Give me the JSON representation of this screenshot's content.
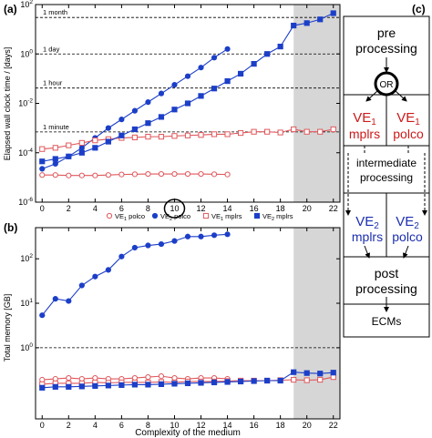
{
  "chart_data": [
    {
      "panel_label": "(a)",
      "type": "line",
      "ylabel": "Elapsed wall clock time / [days]",
      "y_scale": "log",
      "ylim_exp": [
        -6,
        2
      ],
      "y_ticks": [
        {
          "base": "10",
          "exp": "-6"
        },
        {
          "base": "10",
          "exp": "-4"
        },
        {
          "base": "10",
          "exp": "-2"
        },
        {
          "base": "10",
          "exp": "0"
        },
        {
          "base": "10",
          "exp": "2"
        }
      ],
      "xlim": [
        -0.5,
        22.5
      ],
      "x_ticks": [
        "0",
        "2",
        "4",
        "6",
        "8",
        "10",
        "12",
        "14",
        "16",
        "18",
        "20",
        "22"
      ],
      "highlighted_tick": "10",
      "shaded_x_range": [
        19,
        22.5
      ],
      "reference_lines": [
        {
          "label": "1 month",
          "log10_value": 1.477
        },
        {
          "label": "1 day",
          "log10_value": 0
        },
        {
          "label": "1 hour",
          "log10_value": -1.38
        },
        {
          "label": "1 minute",
          "log10_value": -3.158
        }
      ],
      "series_log10": [
        {
          "name_base": "VE",
          "name_sub": "1",
          "name_rest": " polco",
          "color": "#e0585c",
          "marker": "circle-open",
          "x": [
            0,
            1,
            2,
            3,
            4,
            5,
            6,
            7,
            8,
            9,
            10,
            11,
            12,
            13,
            14
          ],
          "log10_y": [
            -4.9,
            -4.9,
            -4.92,
            -4.92,
            -4.92,
            -4.9,
            -4.88,
            -4.87,
            -4.86,
            -4.86,
            -4.86,
            -4.86,
            -4.86,
            -4.87,
            -4.88
          ]
        },
        {
          "name_base": "VE",
          "name_sub": "2",
          "name_rest": " polco",
          "color": "#1c3fc8",
          "marker": "circle-filled",
          "x": [
            0,
            1,
            2,
            3,
            4,
            5,
            6,
            7,
            8,
            9,
            10,
            11,
            12,
            13,
            14
          ],
          "log10_y": [
            -4.65,
            -4.45,
            -4.15,
            -3.8,
            -3.4,
            -3.0,
            -2.65,
            -2.3,
            -1.95,
            -1.6,
            -1.25,
            -0.9,
            -0.55,
            -0.15,
            0.2
          ]
        },
        {
          "name_base": "VE",
          "name_sub": "1",
          "name_rest": " mplrs",
          "color": "#e0585c",
          "marker": "square-open",
          "x": [
            0,
            1,
            2,
            3,
            4,
            5,
            6,
            7,
            8,
            9,
            10,
            11,
            12,
            13,
            14,
            15,
            16,
            17,
            18,
            19,
            20,
            21,
            22
          ],
          "log10_y": [
            -3.85,
            -3.8,
            -3.7,
            -3.6,
            -3.5,
            -3.45,
            -3.4,
            -3.38,
            -3.35,
            -3.35,
            -3.32,
            -3.3,
            -3.28,
            -3.25,
            -3.25,
            -3.2,
            -3.15,
            -3.15,
            -3.18,
            -3.05,
            -3.15,
            -3.15,
            -3.05
          ]
        },
        {
          "name_base": "VE",
          "name_sub": "2",
          "name_rest": " mplrs",
          "color": "#1c3fc8",
          "marker": "square-filled",
          "x": [
            0,
            1,
            2,
            3,
            4,
            5,
            6,
            7,
            8,
            9,
            10,
            11,
            12,
            13,
            14,
            15,
            16,
            17,
            18,
            19,
            20,
            21,
            22
          ],
          "log10_y": [
            -4.35,
            -4.25,
            -4.15,
            -4.0,
            -3.8,
            -3.55,
            -3.3,
            -3.05,
            -2.8,
            -2.55,
            -2.25,
            -2.0,
            -1.7,
            -1.4,
            -1.1,
            -0.8,
            -0.4,
            0.0,
            0.3,
            1.15,
            1.25,
            1.4,
            1.65
          ]
        }
      ]
    },
    {
      "panel_label": "(b)",
      "type": "line",
      "xlabel": "Complexity of the medium",
      "ylabel": "Total memory [GB]",
      "y_scale": "log",
      "ylim_exp": [
        -1.6,
        2.7
      ],
      "y_ticks": [
        {
          "base": "10",
          "exp": "0"
        },
        {
          "base": "10",
          "exp": "1"
        },
        {
          "base": "10",
          "exp": "2"
        }
      ],
      "xlim": [
        -0.5,
        22.5
      ],
      "x_ticks": [
        "0",
        "2",
        "4",
        "6",
        "8",
        "10",
        "12",
        "14",
        "16",
        "18",
        "20",
        "22"
      ],
      "shaded_x_range": [
        19,
        22.5
      ],
      "reference_lines": [
        {
          "log10_value": 0
        }
      ],
      "series_log10": [
        {
          "name_base": "VE",
          "name_sub": "1",
          "name_rest": " polco",
          "color": "#e0585c",
          "marker": "circle-open",
          "x": [
            0,
            1,
            2,
            3,
            4,
            5,
            6,
            7,
            8,
            9,
            10,
            11,
            12,
            13,
            14
          ],
          "log10_y": [
            -0.72,
            -0.7,
            -0.68,
            -0.7,
            -0.68,
            -0.7,
            -0.7,
            -0.68,
            -0.66,
            -0.64,
            -0.68,
            -0.7,
            -0.68,
            -0.68,
            -0.7
          ]
        },
        {
          "name_base": "VE",
          "name_sub": "2",
          "name_rest": " polco",
          "color": "#1c3fc8",
          "marker": "circle-filled",
          "x": [
            0,
            1,
            2,
            3,
            4,
            5,
            6,
            7,
            8,
            9,
            10,
            11,
            12,
            13,
            14
          ],
          "log10_y": [
            0.73,
            1.1,
            1.05,
            1.4,
            1.6,
            1.75,
            2.05,
            2.25,
            2.3,
            2.33,
            2.4,
            2.5,
            2.5,
            2.53,
            2.55
          ]
        },
        {
          "name_base": "VE",
          "name_sub": "1",
          "name_rest": " mplrs",
          "color": "#e0585c",
          "marker": "square-open",
          "x": [
            0,
            1,
            2,
            3,
            4,
            5,
            6,
            7,
            8,
            9,
            10,
            11,
            12,
            13,
            14,
            15,
            16,
            17,
            18,
            19,
            20,
            21,
            22
          ],
          "log10_y": [
            -0.82,
            -0.8,
            -0.8,
            -0.8,
            -0.78,
            -0.79,
            -0.78,
            -0.78,
            -0.78,
            -0.77,
            -0.78,
            -0.76,
            -0.76,
            -0.76,
            -0.75,
            -0.74,
            -0.74,
            -0.74,
            -0.73,
            -0.72,
            -0.73,
            -0.72,
            -0.66
          ]
        },
        {
          "name_base": "VE",
          "name_sub": "2",
          "name_rest": " mplrs",
          "color": "#1c3fc8",
          "marker": "square-filled",
          "x": [
            0,
            1,
            2,
            3,
            4,
            5,
            6,
            7,
            8,
            9,
            10,
            11,
            12,
            13,
            14,
            15,
            16,
            17,
            18,
            19,
            20,
            21,
            22
          ],
          "log10_y": [
            -0.9,
            -0.88,
            -0.88,
            -0.87,
            -0.86,
            -0.85,
            -0.84,
            -0.83,
            -0.83,
            -0.82,
            -0.81,
            -0.8,
            -0.79,
            -0.78,
            -0.77,
            -0.76,
            -0.75,
            -0.74,
            -0.74,
            -0.55,
            -0.57,
            -0.58,
            -0.56
          ]
        }
      ]
    }
  ],
  "flowchart": {
    "panel_label": "(c)",
    "preprocessing_line1": "pre",
    "preprocessing_line2": "processing",
    "or_node": "OR",
    "ve1_base": "VE",
    "ve1_sub": "1",
    "ve2_base": "VE",
    "ve2_sub": "2",
    "mplrs": "mplrs",
    "polco": "polco",
    "intermediate_line1": "intermediate",
    "intermediate_line2": "processing",
    "post_line1": "post",
    "post_line2": "processing",
    "ecms": "ECMs",
    "red": "#cc1a1a",
    "blue": "#1c2fb0"
  }
}
